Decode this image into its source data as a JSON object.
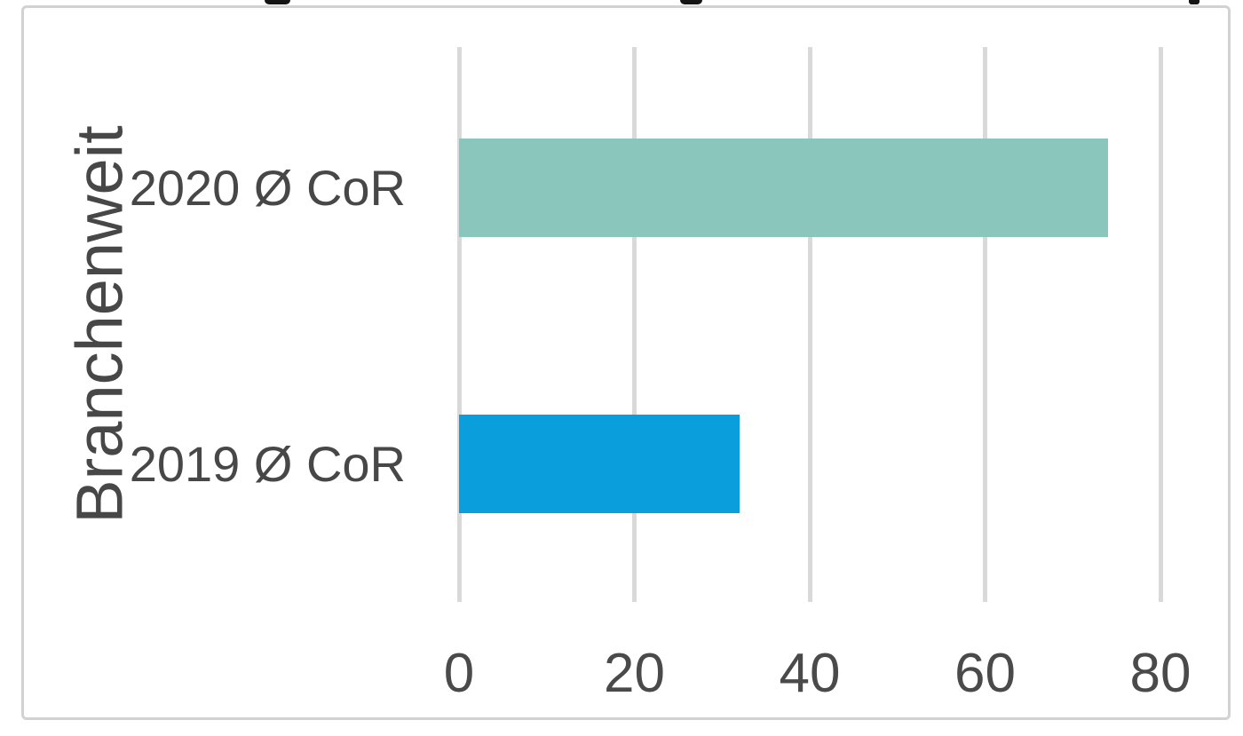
{
  "chart_data": {
    "type": "bar",
    "orientation": "horizontal",
    "title_visible": false,
    "ylabel": "Branchenweit",
    "xlabel": "",
    "categories": [
      "2020 Ø CoR",
      "2019 Ø CoR"
    ],
    "values": [
      74,
      32
    ],
    "bar_colors": [
      "#8bc6bc",
      "#0a9edc"
    ],
    "x_ticks": [
      0,
      20,
      40,
      60,
      80
    ],
    "xlim": [
      0,
      88
    ],
    "grid": "vertical",
    "gridline_color": "#d9d9d9",
    "frame_border_color": "#d2d2d2",
    "text_color": "#474747",
    "legend_position": "none"
  }
}
